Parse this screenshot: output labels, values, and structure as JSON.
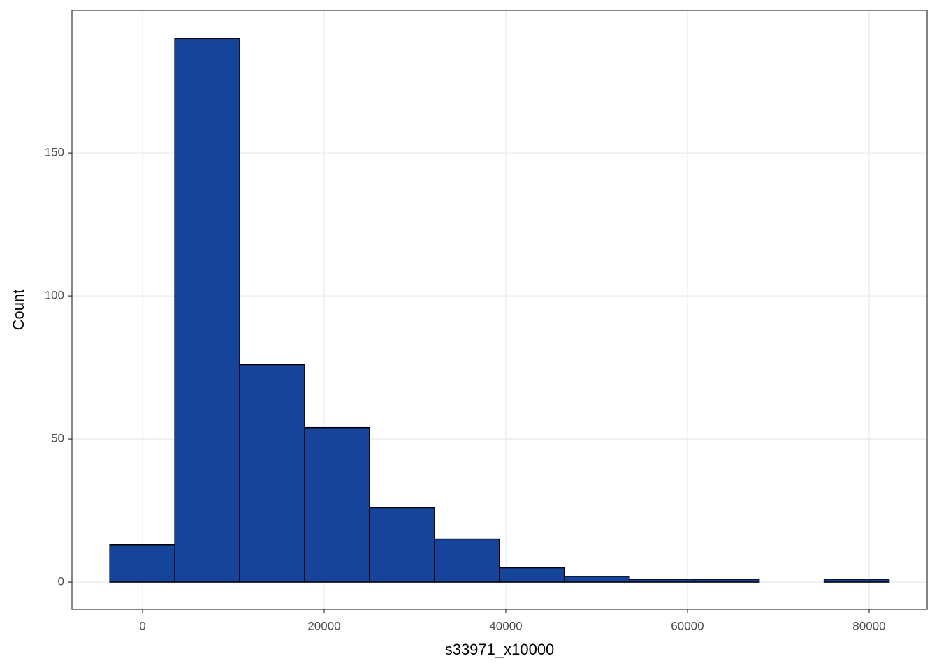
{
  "chart_data": {
    "type": "histogram",
    "x_label": "s33971_x10000",
    "y_label": "Count",
    "bins": [
      -3600,
      3550,
      10700,
      17850,
      25000,
      32150,
      39300,
      46450,
      53600,
      60750,
      67900,
      75050,
      82200
    ],
    "values": [
      13,
      190,
      76,
      54,
      26,
      15,
      5,
      2,
      1,
      1,
      0,
      1
    ],
    "color": "#17449b",
    "edgecolor": "#000000",
    "xlim": [
      -7770,
      86390
    ],
    "xticks": [
      0,
      20000,
      40000,
      60000,
      80000
    ],
    "ylim": [
      -9.5,
      199.8
    ],
    "yticks": [
      0,
      50,
      100,
      150
    ],
    "grid": true
  }
}
